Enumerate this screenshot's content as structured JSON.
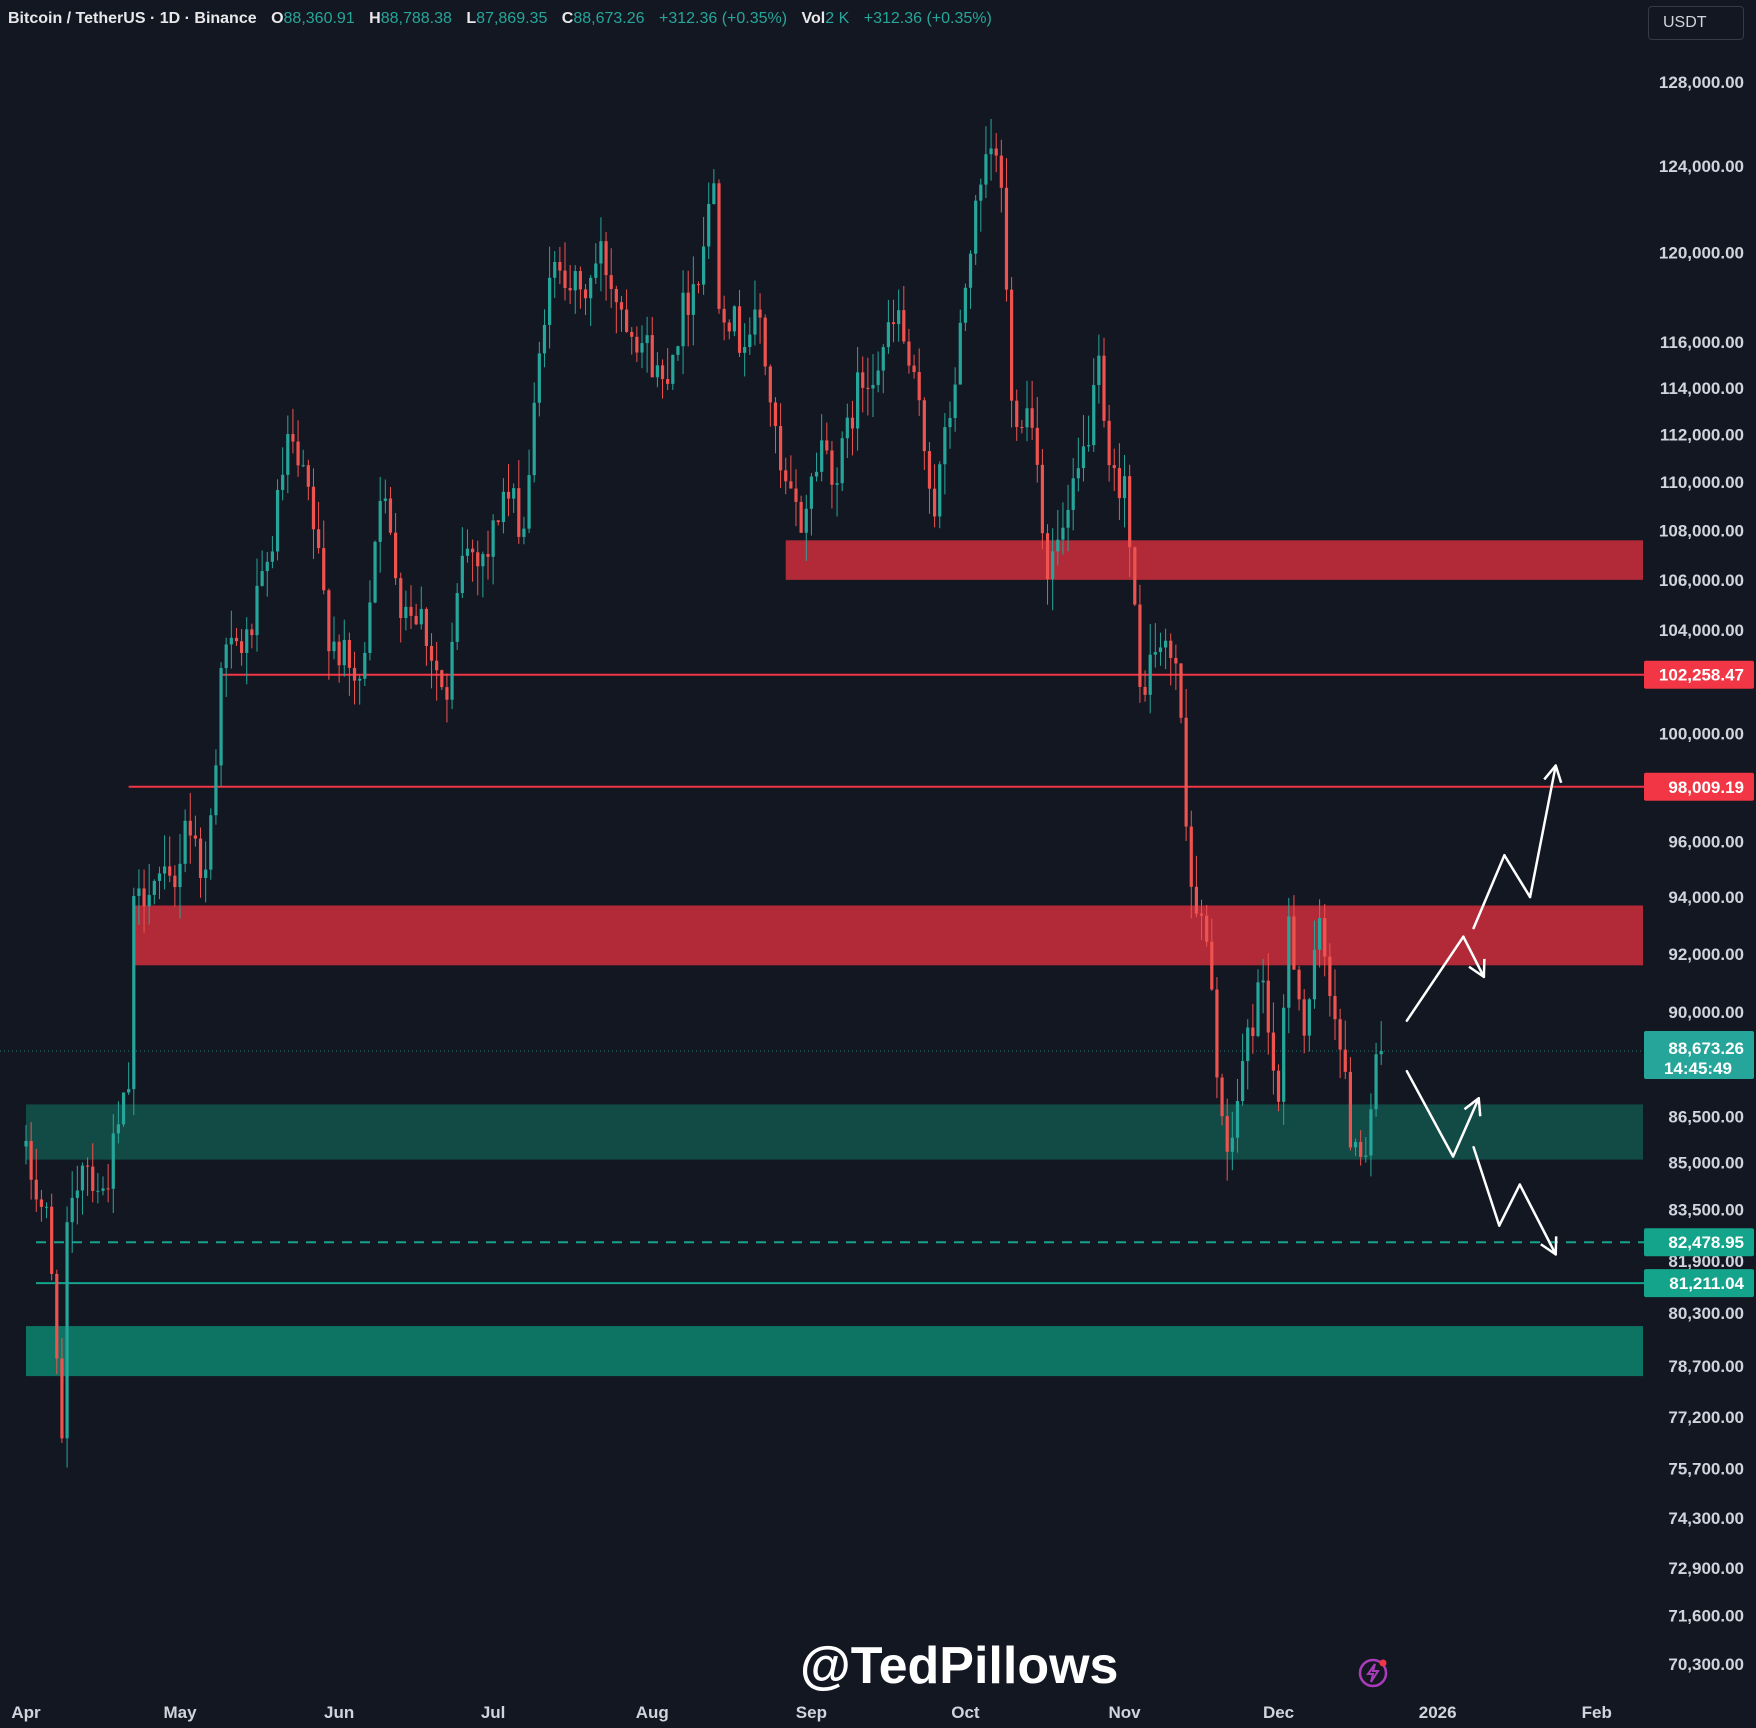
{
  "header": {
    "symbol": "Bitcoin / TetherUS · 1D · Binance",
    "open_label": "O",
    "open": "88,360.91",
    "high_label": "H",
    "high": "88,788.38",
    "low_label": "L",
    "low": "87,869.35",
    "close_label": "C",
    "close": "88,673.26",
    "change": "+312.36 (+0.35%)",
    "vol_label": "Vol",
    "vol": "2 K",
    "vol_change": "+312.36 (+0.35%)"
  },
  "currency_button": "USDT",
  "watermark": "@TedPillows",
  "colors": {
    "background": "#131722",
    "up": "#26a69a",
    "down": "#ef5350",
    "resistance_zone": "#b22a37",
    "support_zone_dark": "#124a45",
    "support_zone": "#0d7362",
    "resistance_line": "#f23645",
    "support_line": "#14a38b"
  },
  "chart_data": {
    "type": "candlestick",
    "scale": "log",
    "ylim": [
      69800,
      129200
    ],
    "price_ticks": [
      "128,000.00",
      "124,000.00",
      "120,000.00",
      "116,000.00",
      "114,000.00",
      "112,000.00",
      "110,000.00",
      "108,000.00",
      "106,000.00",
      "104,000.00",
      "100,000.00",
      "96,000.00",
      "94,000.00",
      "92,000.00",
      "90,000.00",
      "86,500.00",
      "85,000.00",
      "83,500.00",
      "81,900.00",
      "80,300.00",
      "78,700.00",
      "77,200.00",
      "75,700.00",
      "74,300.00",
      "72,900.00",
      "71,600.00",
      "70,300.00"
    ],
    "time_labels": [
      "Apr",
      "May",
      "Jun",
      "Jul",
      "Aug",
      "Sep",
      "Oct",
      "Nov",
      "Dec",
      "2026",
      "Feb"
    ],
    "price_labels": [
      {
        "text": "102,258.47",
        "value": 102258.47,
        "kind": "resistance"
      },
      {
        "text": "98,009.19",
        "value": 98009.19,
        "kind": "resistance"
      },
      {
        "text": "82,478.95",
        "value": 82478.95,
        "kind": "support"
      },
      {
        "text": "81,211.04",
        "value": 81211.04,
        "kind": "support"
      }
    ],
    "last_price": {
      "text": "88,673.26",
      "countdown": "14:45:49",
      "value": 88673.26
    },
    "zones": [
      {
        "kind": "resistance",
        "low": 106000,
        "high": 107600,
        "from": "2025-08-27",
        "to": "2026-02-02"
      },
      {
        "kind": "resistance",
        "low": 91600,
        "high": 93700,
        "from": "2025-04-22",
        "to": "2026-02-02"
      },
      {
        "kind": "support-dark",
        "low": 85100,
        "high": 86900,
        "from": "2025-04-01",
        "to": "2026-02-02"
      },
      {
        "kind": "support",
        "low": 78400,
        "high": 79900,
        "from": "2025-04-01",
        "to": "2026-02-02"
      }
    ],
    "levels": [
      {
        "kind": "resistance",
        "value": 102258.47,
        "from": "2025-05-09",
        "style": "solid"
      },
      {
        "kind": "resistance",
        "value": 98009.19,
        "from": "2025-04-21",
        "style": "solid"
      },
      {
        "kind": "support",
        "value": 82478.95,
        "from": "2025-04-01",
        "style": "dashed"
      },
      {
        "kind": "support",
        "value": 81211.04,
        "from": "2025-04-01",
        "style": "solid"
      }
    ],
    "projections": [
      {
        "name": "bullish-path",
        "points": [
          [
            "2025-12-26",
            89700
          ],
          [
            "2026-01-06",
            92600
          ],
          [
            "2026-01-10",
            91200
          ],
          [
            "2026-01-08",
            92900
          ],
          [
            "2026-01-14",
            95500
          ],
          [
            "2026-01-19",
            94000
          ],
          [
            "2026-01-24",
            98800
          ]
        ]
      },
      {
        "name": "bearish-path",
        "points": [
          [
            "2025-12-26",
            88000
          ],
          [
            "2026-01-04",
            85200
          ],
          [
            "2026-01-09",
            87100
          ],
          [
            "2026-01-08",
            85500
          ],
          [
            "2026-01-13",
            83000
          ],
          [
            "2026-01-17",
            84300
          ],
          [
            "2026-01-24",
            82100
          ]
        ]
      }
    ],
    "candles_start": "2025-04-01",
    "candles_end": "2025-12-21",
    "close_path": [
      [
        "2025-04-01",
        85100
      ],
      [
        "2025-04-05",
        83200
      ],
      [
        "2025-04-07",
        79500
      ],
      [
        "2025-04-08",
        76400
      ],
      [
        "2025-04-09",
        82500
      ],
      [
        "2025-04-12",
        85300
      ],
      [
        "2025-04-16",
        84000
      ],
      [
        "2025-04-21",
        87500
      ],
      [
        "2025-04-22",
        93400
      ],
      [
        "2025-04-25",
        94700
      ],
      [
        "2025-04-30",
        94200
      ],
      [
        "2025-05-02",
        97000
      ],
      [
        "2025-05-06",
        94700
      ],
      [
        "2025-05-08",
        99300
      ],
      [
        "2025-05-09",
        103000
      ],
      [
        "2025-05-14",
        103500
      ],
      [
        "2025-05-18",
        106400
      ],
      [
        "2025-05-22",
        111600
      ],
      [
        "2025-05-26",
        109400
      ],
      [
        "2025-05-30",
        104000
      ],
      [
        "2025-06-05",
        101600
      ],
      [
        "2025-06-09",
        109900
      ],
      [
        "2025-06-13",
        105300
      ],
      [
        "2025-06-17",
        104600
      ],
      [
        "2025-06-22",
        101000
      ],
      [
        "2025-06-25",
        107200
      ],
      [
        "2025-06-30",
        107100
      ],
      [
        "2025-07-03",
        109600
      ],
      [
        "2025-07-07",
        108200
      ],
      [
        "2025-07-11",
        117500
      ],
      [
        "2025-07-14",
        119800
      ],
      [
        "2025-07-18",
        117800
      ],
      [
        "2025-07-22",
        119900
      ],
      [
        "2025-07-26",
        117600
      ],
      [
        "2025-07-31",
        115700
      ],
      [
        "2025-08-03",
        114200
      ],
      [
        "2025-08-07",
        117400
      ],
      [
        "2025-08-10",
        119300
      ],
      [
        "2025-08-13",
        123300
      ],
      [
        "2025-08-14",
        118300
      ],
      [
        "2025-08-18",
        116200
      ],
      [
        "2025-08-22",
        116900
      ],
      [
        "2025-08-26",
        110100
      ],
      [
        "2025-08-30",
        108300
      ],
      [
        "2025-09-03",
        111700
      ],
      [
        "2025-09-06",
        110200
      ],
      [
        "2025-09-10",
        113900
      ],
      [
        "2025-09-14",
        115300
      ],
      [
        "2025-09-18",
        117100
      ],
      [
        "2025-09-22",
        112800
      ],
      [
        "2025-09-25",
        109000
      ],
      [
        "2025-09-29",
        114300
      ],
      [
        "2025-10-02",
        120500
      ],
      [
        "2025-10-06",
        124700
      ],
      [
        "2025-10-08",
        123200
      ],
      [
        "2025-10-10",
        113200
      ],
      [
        "2025-10-14",
        113000
      ],
      [
        "2025-10-17",
        106400
      ],
      [
        "2025-10-21",
        108400
      ],
      [
        "2025-10-24",
        111100
      ],
      [
        "2025-10-27",
        114500
      ],
      [
        "2025-10-29",
        110000
      ],
      [
        "2025-11-01",
        110200
      ],
      [
        "2025-11-04",
        101500
      ],
      [
        "2025-11-07",
        103300
      ],
      [
        "2025-11-11",
        102900
      ],
      [
        "2025-11-14",
        94500
      ],
      [
        "2025-11-17",
        92200
      ],
      [
        "2025-11-21",
        84700
      ],
      [
        "2025-11-24",
        88300
      ],
      [
        "2025-11-28",
        91300
      ],
      [
        "2025-12-01",
        86300
      ],
      [
        "2025-12-03",
        93500
      ],
      [
        "2025-12-06",
        89300
      ],
      [
        "2025-12-09",
        92700
      ],
      [
        "2025-12-12",
        90200
      ],
      [
        "2025-12-15",
        86000
      ],
      [
        "2025-12-18",
        85500
      ],
      [
        "2025-12-20",
        88360
      ],
      [
        "2025-12-21",
        88673
      ]
    ]
  }
}
